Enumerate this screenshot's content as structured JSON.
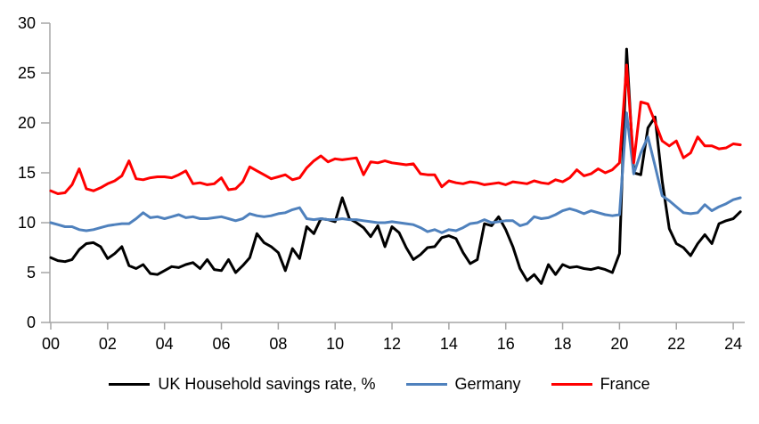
{
  "chart_data": {
    "type": "line",
    "title": "",
    "grid": false,
    "legend_position": "bottom",
    "axis_color": "#A6A6A6",
    "text_color": "#000000",
    "x_axis": {
      "start_year": 2000,
      "frequency": "quarterly",
      "tick_labels": [
        "00",
        "02",
        "04",
        "06",
        "08",
        "10",
        "12",
        "14",
        "16",
        "18",
        "20",
        "22",
        "24"
      ]
    },
    "y_axis": {
      "ticks": [
        0,
        5,
        10,
        15,
        20,
        25,
        30
      ],
      "range": [
        0,
        30
      ]
    },
    "series": [
      {
        "name": "UK Household savings rate, %",
        "color": "#000000",
        "values": [
          6.5,
          6.2,
          6.1,
          6.3,
          7.3,
          7.9,
          8.0,
          7.6,
          6.4,
          6.9,
          7.6,
          5.7,
          5.4,
          5.8,
          4.9,
          4.8,
          5.2,
          5.6,
          5.5,
          5.8,
          6.0,
          5.4,
          6.3,
          5.3,
          5.2,
          6.3,
          5.0,
          5.7,
          6.5,
          8.9,
          8.0,
          7.6,
          7.0,
          5.2,
          7.4,
          6.4,
          9.6,
          8.9,
          10.4,
          10.3,
          10.1,
          12.5,
          10.4,
          10.0,
          9.5,
          8.6,
          9.7,
          7.6,
          9.6,
          9.0,
          7.5,
          6.3,
          6.8,
          7.5,
          7.6,
          8.5,
          8.7,
          8.4,
          7.0,
          5.9,
          6.3,
          9.9,
          9.7,
          10.6,
          9.3,
          7.6,
          5.4,
          4.2,
          4.8,
          3.9,
          5.8,
          4.8,
          5.8,
          5.5,
          5.6,
          5.4,
          5.3,
          5.5,
          5.3,
          5.0,
          6.9,
          27.4,
          15.0,
          14.8,
          19.5,
          20.6,
          14.2,
          9.4,
          7.9,
          7.5,
          6.7,
          7.9,
          8.8,
          7.9,
          9.9,
          10.2,
          10.4,
          11.1
        ]
      },
      {
        "name": "Germany",
        "color": "#4F81BD",
        "values": [
          10.0,
          9.8,
          9.6,
          9.6,
          9.3,
          9.2,
          9.3,
          9.5,
          9.7,
          9.8,
          9.9,
          9.9,
          10.4,
          11.0,
          10.5,
          10.6,
          10.4,
          10.6,
          10.8,
          10.5,
          10.6,
          10.4,
          10.4,
          10.5,
          10.6,
          10.4,
          10.2,
          10.4,
          10.9,
          10.7,
          10.6,
          10.7,
          10.9,
          11.0,
          11.3,
          11.5,
          10.4,
          10.3,
          10.4,
          10.3,
          10.3,
          10.4,
          10.3,
          10.3,
          10.2,
          10.1,
          10.0,
          10.0,
          10.1,
          10.0,
          9.9,
          9.8,
          9.5,
          9.1,
          9.3,
          9.0,
          9.3,
          9.2,
          9.5,
          9.9,
          10.0,
          10.3,
          10.0,
          10.1,
          10.2,
          10.2,
          9.7,
          9.9,
          10.6,
          10.4,
          10.5,
          10.8,
          11.2,
          11.4,
          11.2,
          10.9,
          11.2,
          11.0,
          10.8,
          10.7,
          10.8,
          21.0,
          14.9,
          17.0,
          18.6,
          15.7,
          12.7,
          12.2,
          11.6,
          11.0,
          10.9,
          11.0,
          11.8,
          11.2,
          11.6,
          11.9,
          12.3,
          12.5
        ]
      },
      {
        "name": "France",
        "color": "#FF0000",
        "values": [
          13.2,
          12.9,
          13.0,
          13.8,
          15.4,
          13.4,
          13.2,
          13.5,
          13.9,
          14.2,
          14.7,
          16.2,
          14.4,
          14.3,
          14.5,
          14.6,
          14.6,
          14.5,
          14.8,
          15.2,
          13.9,
          14.0,
          13.8,
          13.9,
          14.5,
          13.3,
          13.4,
          14.1,
          15.6,
          15.2,
          14.8,
          14.4,
          14.6,
          14.8,
          14.3,
          14.5,
          15.5,
          16.2,
          16.7,
          16.1,
          16.4,
          16.3,
          16.4,
          16.5,
          14.8,
          16.1,
          16.0,
          16.2,
          16.0,
          15.9,
          15.8,
          15.9,
          14.9,
          14.8,
          14.8,
          13.6,
          14.2,
          14.0,
          13.9,
          14.1,
          14.0,
          13.8,
          13.9,
          14.0,
          13.8,
          14.1,
          14.0,
          13.9,
          14.2,
          14.0,
          13.9,
          14.3,
          14.1,
          14.5,
          15.3,
          14.7,
          14.9,
          15.4,
          15.0,
          15.3,
          16.0,
          25.8,
          16.0,
          22.1,
          21.9,
          20.1,
          18.2,
          17.7,
          18.2,
          16.5,
          17.0,
          18.6,
          17.7,
          17.7,
          17.4,
          17.5,
          17.9,
          17.8
        ]
      }
    ]
  }
}
